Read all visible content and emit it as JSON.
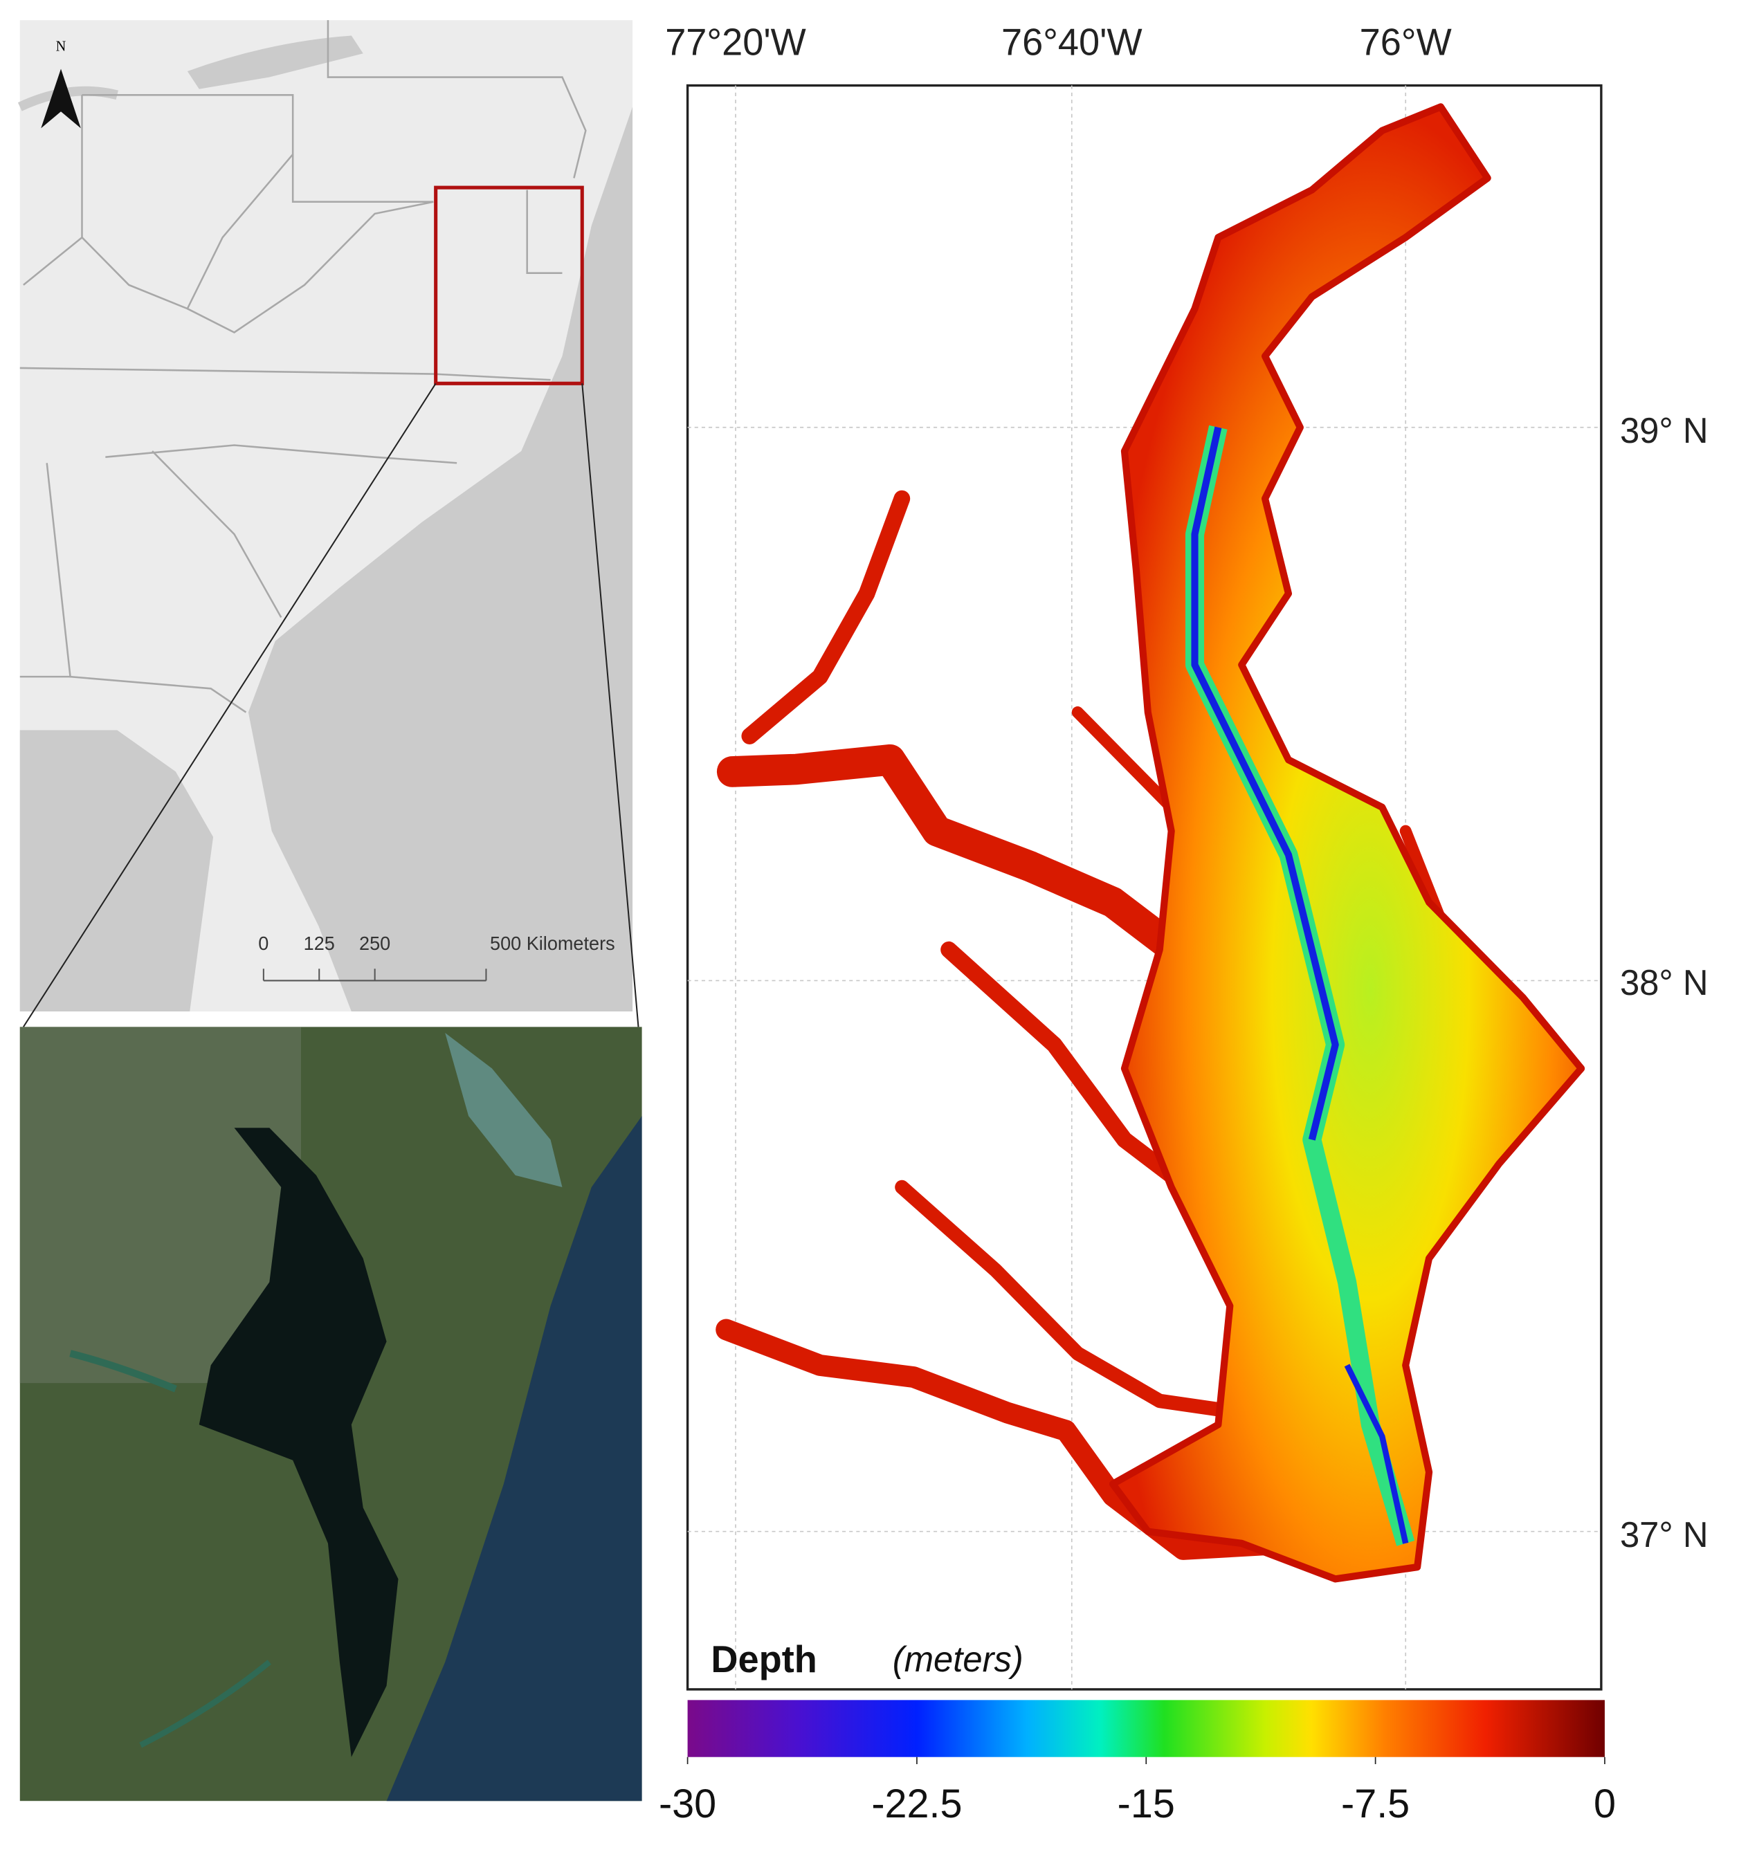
{
  "inset_map": {
    "north_label": "N",
    "scale_bar": {
      "ticks": [
        0,
        125,
        250,
        {
          "value": 500,
          "label": "500 Kilometers"
        }
      ]
    }
  },
  "depth_map": {
    "longitude_labels": [
      "77°20'W",
      "76°40'W",
      "76°W"
    ],
    "latitude_labels": [
      "39° N",
      "38° N",
      "37° N"
    ],
    "legend": {
      "title": "Depth",
      "unit": "(meters)",
      "ticks": [
        -30,
        -22.5,
        -15,
        -7.5,
        0
      ]
    }
  }
}
